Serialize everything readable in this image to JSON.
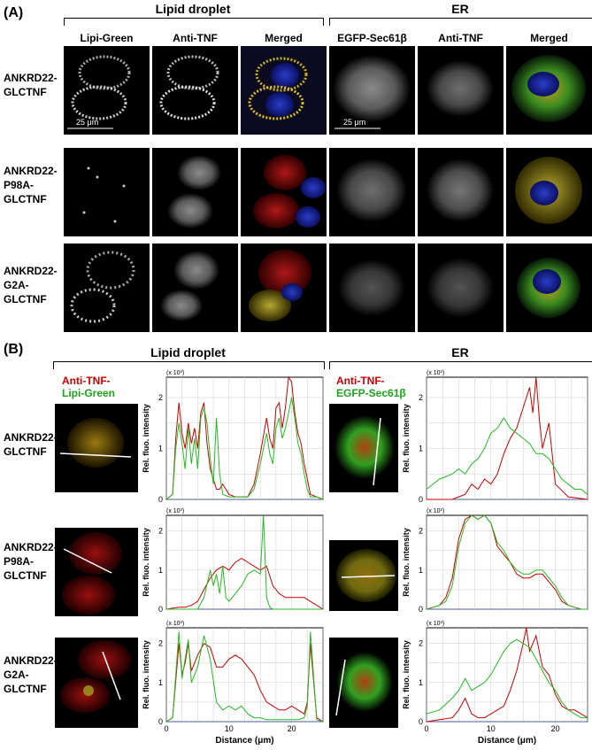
{
  "panelA": {
    "label": "(A)",
    "groups": [
      "Lipid droplet",
      "ER"
    ],
    "columns": [
      "Lipi-Green",
      "Anti-TNF",
      "Merged",
      "EGFP-Sec61β",
      "Anti-TNF",
      "Merged"
    ],
    "rows": [
      [
        "ANKRD22-",
        "GLCTNF"
      ],
      [
        "ANKRD22-",
        "P98A-",
        "GLCTNF"
      ],
      [
        "ANKRD22-",
        "G2A-",
        "GLCTNF"
      ]
    ],
    "scale_bar": "25 μm"
  },
  "panelB": {
    "label": "(B)",
    "groups": [
      "Lipid droplet",
      "ER"
    ],
    "legend_ld": [
      "Anti-TNF-",
      "Lipi-Green"
    ],
    "legend_er": [
      "Anti-TNF-",
      "EGFP-Sec61β"
    ],
    "rows": [
      [
        "ANKRD22-",
        "GLCTNF"
      ],
      [
        "ANKRD22-",
        "P98A-",
        "GLCTNF"
      ],
      [
        "ANKRD22-",
        "G2A-",
        "GLCTNF"
      ]
    ],
    "ylabel": "Rel. fluo. intensity",
    "xlabel": "Distance (μm)",
    "multiplier": "(x 10³)",
    "colors": {
      "red": "#cc0000",
      "green": "#22bb22"
    }
  },
  "chart_data": [
    {
      "type": "line",
      "name": "ld-glctnf",
      "xlabel": "Distance (μm)",
      "ylabel": "Rel. fluo. intensity",
      "ylim": [
        0,
        2.4
      ],
      "xlim": [
        0,
        25
      ],
      "xticks": [
        0,
        10,
        20
      ],
      "yticks": [
        0,
        1,
        2
      ],
      "series": [
        {
          "name": "Anti-TNF",
          "color": "red",
          "x": [
            0,
            1,
            1.5,
            2,
            2.5,
            3,
            3.5,
            4,
            4.5,
            5,
            5.5,
            6,
            6.5,
            7,
            7.5,
            8,
            8.5,
            9,
            10,
            11,
            12,
            13,
            14,
            15,
            16,
            16.5,
            17,
            17.5,
            18,
            18.5,
            19,
            19.5,
            20,
            20.5,
            21,
            21.5,
            22,
            22.5,
            23,
            24,
            25
          ],
          "values": [
            0,
            0.1,
            1.2,
            1.9,
            1.3,
            1.0,
            1.5,
            1.1,
            1.4,
            1.0,
            1.7,
            1.9,
            1.1,
            0.6,
            0.4,
            0.2,
            0.2,
            0.3,
            0.1,
            0.05,
            0.05,
            0.05,
            0.3,
            0.9,
            1.6,
            1.2,
            1.0,
            1.8,
            1.9,
            1.4,
            1.8,
            2.4,
            2.3,
            1.7,
            1.3,
            1.1,
            0.7,
            0.4,
            0.1,
            0.05,
            0
          ]
        },
        {
          "name": "Lipi-Green",
          "color": "green",
          "x": [
            0,
            1,
            1.5,
            2,
            2.5,
            3,
            3.5,
            4,
            4.5,
            5,
            5.5,
            6,
            6.5,
            7,
            7.5,
            8,
            8.5,
            9,
            10,
            11,
            12,
            13,
            14,
            15,
            16,
            16.5,
            17,
            17.5,
            18,
            18.5,
            19,
            19.5,
            20,
            20.5,
            21,
            21.5,
            22,
            22.5,
            23,
            24,
            25
          ],
          "values": [
            0,
            0.1,
            1.0,
            1.5,
            1.1,
            0.6,
            1.4,
            0.7,
            1.2,
            0.6,
            1.6,
            1.8,
            1.5,
            0.8,
            0.3,
            1.6,
            0.5,
            0.1,
            0.05,
            0.05,
            0.05,
            0.05,
            0.2,
            0.7,
            1.3,
            0.9,
            0.7,
            1.4,
            1.6,
            1.2,
            1.4,
            1.7,
            2.0,
            1.6,
            1.1,
            0.9,
            0.5,
            0.2,
            0.05,
            0.05,
            0
          ]
        }
      ]
    },
    {
      "type": "line",
      "name": "er-glctnf",
      "xlabel": "Distance (μm)",
      "ylabel": "Rel. fluo. intensity",
      "ylim": [
        0,
        2.4
      ],
      "xlim": [
        0,
        25
      ],
      "xticks": [
        0,
        10,
        20
      ],
      "yticks": [
        0,
        1,
        2
      ],
      "series": [
        {
          "name": "Anti-TNF",
          "color": "red",
          "x": [
            0,
            2,
            4,
            5,
            6,
            7,
            8,
            9,
            10,
            11,
            12,
            13,
            14,
            15,
            16,
            16.5,
            17,
            17.5,
            18,
            19,
            20,
            22,
            25
          ],
          "values": [
            0,
            0,
            0,
            0.05,
            0.1,
            0.3,
            0.2,
            0.4,
            0.3,
            0.5,
            0.9,
            1.2,
            1.4,
            1.8,
            2.2,
            1.7,
            2.4,
            1.6,
            1.0,
            1.5,
            0.3,
            0.05,
            0
          ]
        },
        {
          "name": "EGFP-Sec61β",
          "color": "green",
          "x": [
            0,
            2,
            4,
            5,
            6,
            7,
            8,
            9,
            10,
            11,
            12,
            13,
            14,
            15,
            16,
            17,
            18,
            19,
            20,
            21,
            22,
            23,
            24,
            25
          ],
          "values": [
            0.2,
            0.4,
            0.5,
            0.6,
            0.5,
            0.7,
            0.8,
            1.0,
            1.3,
            1.4,
            1.6,
            1.4,
            1.3,
            1.2,
            1.1,
            0.9,
            0.9,
            0.8,
            0.6,
            0.4,
            0.3,
            0.2,
            0.2,
            0.1
          ]
        }
      ]
    },
    {
      "type": "line",
      "name": "ld-p98a",
      "xlabel": "Distance (μm)",
      "ylabel": "Rel. fluo. intensity",
      "ylim": [
        0,
        2.4
      ],
      "xlim": [
        0,
        25
      ],
      "xticks": [
        0,
        10,
        20
      ],
      "yticks": [
        0,
        1,
        2
      ],
      "series": [
        {
          "name": "Anti-TNF",
          "color": "red",
          "x": [
            0,
            2,
            3,
            4,
            5,
            6,
            7,
            8,
            9,
            10,
            11,
            12,
            13,
            14,
            15,
            16,
            17,
            18,
            19,
            20,
            21,
            22,
            23,
            24,
            25
          ],
          "values": [
            0,
            0.05,
            0.05,
            0.1,
            0.2,
            0.5,
            0.8,
            1.0,
            1.1,
            1.0,
            1.2,
            1.3,
            1.2,
            1.1,
            1.0,
            1.1,
            0.6,
            0.4,
            0.3,
            0.3,
            0.3,
            0.3,
            0.2,
            0.1,
            0
          ]
        },
        {
          "name": "Lipi-Green",
          "color": "green",
          "x": [
            0,
            2,
            4,
            5,
            6,
            7,
            7.5,
            8,
            8.5,
            9,
            9.5,
            10,
            11,
            12,
            13,
            14,
            15,
            15.5,
            16,
            16.5,
            17,
            18,
            20,
            22,
            25
          ],
          "values": [
            0,
            0,
            0,
            0,
            0.3,
            1.0,
            0.6,
            0.9,
            0.4,
            1.1,
            0.3,
            0.2,
            0.4,
            0.6,
            0.9,
            1.0,
            0.9,
            2.5,
            0.3,
            0.05,
            0,
            0,
            0,
            0,
            0
          ]
        }
      ]
    },
    {
      "type": "line",
      "name": "er-p98a",
      "xlabel": "Distance (μm)",
      "ylabel": "Rel. fluo. intensity",
      "ylim": [
        0,
        2.4
      ],
      "xlim": [
        0,
        25
      ],
      "xticks": [
        0,
        10,
        20
      ],
      "yticks": [
        0,
        1,
        2
      ],
      "series": [
        {
          "name": "Anti-TNF",
          "color": "red",
          "x": [
            0,
            1,
            2,
            3,
            4,
            5,
            6,
            7,
            8,
            9,
            10,
            11,
            12,
            13,
            14,
            15,
            16,
            17,
            18,
            19,
            20,
            21,
            22,
            23,
            24,
            25
          ],
          "values": [
            0,
            0.05,
            0.1,
            0.3,
            0.8,
            1.8,
            2.3,
            2.4,
            2.3,
            2.4,
            2.2,
            1.6,
            1.4,
            1.2,
            0.9,
            0.8,
            0.8,
            0.9,
            0.9,
            0.7,
            0.5,
            0.2,
            0.1,
            0.05,
            0,
            0
          ]
        },
        {
          "name": "EGFP-Sec61β",
          "color": "green",
          "x": [
            0,
            1,
            2,
            3,
            4,
            5,
            6,
            7,
            8,
            9,
            10,
            11,
            12,
            13,
            14,
            15,
            16,
            17,
            18,
            19,
            20,
            21,
            22,
            23,
            24,
            25
          ],
          "values": [
            0,
            0.05,
            0.1,
            0.2,
            0.6,
            1.6,
            2.2,
            2.4,
            2.3,
            2.4,
            2.2,
            1.7,
            1.5,
            1.2,
            1.0,
            0.9,
            0.9,
            1.0,
            1.0,
            0.8,
            0.6,
            0.3,
            0.1,
            0.05,
            0,
            0
          ]
        }
      ]
    },
    {
      "type": "line",
      "name": "ld-g2a",
      "xlabel": "Distance (μm)",
      "ylabel": "Rel. fluo. intensity",
      "ylim": [
        0,
        2.4
      ],
      "xlim": [
        0,
        25
      ],
      "xticks": [
        0,
        10,
        20
      ],
      "yticks": [
        0,
        1,
        2
      ],
      "series": [
        {
          "name": "Anti-TNF",
          "color": "red",
          "x": [
            0,
            1,
            2,
            2.5,
            3,
            3.5,
            4,
            5,
            6,
            7,
            8,
            9,
            10,
            11,
            12,
            13,
            14,
            15,
            16,
            17,
            18,
            19,
            20,
            21,
            22,
            22.5,
            23,
            24,
            25
          ],
          "values": [
            0,
            0.1,
            2.0,
            1.2,
            1.5,
            2.0,
            1.3,
            1.7,
            2.0,
            1.9,
            1.4,
            1.4,
            1.6,
            1.7,
            1.6,
            1.4,
            1.2,
            0.8,
            0.5,
            0.4,
            0.3,
            0.3,
            0.4,
            0.3,
            0.2,
            0.5,
            2.0,
            0.1,
            0
          ]
        },
        {
          "name": "Lipi-Green",
          "color": "green",
          "x": [
            0,
            1,
            2,
            2.5,
            3,
            3.5,
            4,
            5,
            6,
            7,
            8,
            9,
            10,
            11,
            12,
            13,
            14,
            15,
            16,
            17,
            18,
            19,
            20,
            21,
            22,
            22.5,
            23,
            24,
            25
          ],
          "values": [
            0,
            0.1,
            2.3,
            1.1,
            1.6,
            2.1,
            1.0,
            1.4,
            2.2,
            1.6,
            0.5,
            0.3,
            0.4,
            0.3,
            0.4,
            0.2,
            0.1,
            0.1,
            0.05,
            0.05,
            0.05,
            0.05,
            0.05,
            0.05,
            0.1,
            0.4,
            2.3,
            0.05,
            0
          ]
        }
      ]
    },
    {
      "type": "line",
      "name": "er-g2a",
      "xlabel": "Distance (μm)",
      "ylabel": "Rel. fluo. intensity",
      "ylim": [
        0,
        2.4
      ],
      "xlim": [
        0,
        25
      ],
      "xticks": [
        0,
        10,
        20
      ],
      "yticks": [
        0,
        1,
        2
      ],
      "series": [
        {
          "name": "Anti-TNF",
          "color": "red",
          "x": [
            0,
            2,
            4,
            5,
            6,
            7,
            8,
            9,
            10,
            11,
            12,
            13,
            14,
            15,
            15.5,
            16,
            17,
            18,
            19,
            20,
            21,
            22,
            23,
            24,
            25
          ],
          "values": [
            0,
            0.05,
            0.1,
            0.3,
            0.6,
            0.2,
            0.1,
            0.1,
            0.2,
            0.3,
            0.4,
            0.8,
            1.3,
            2.0,
            2.4,
            1.8,
            2.2,
            1.4,
            1.2,
            0.7,
            0.4,
            0.3,
            0.3,
            0.2,
            0.1
          ]
        },
        {
          "name": "EGFP-Sec61β",
          "color": "green",
          "x": [
            0,
            2,
            4,
            5,
            6,
            7,
            8,
            9,
            10,
            11,
            12,
            13,
            14,
            15,
            16,
            17,
            18,
            19,
            20,
            21,
            22,
            23,
            24,
            25
          ],
          "values": [
            0.2,
            0.3,
            0.6,
            0.8,
            1.1,
            0.8,
            0.9,
            1.0,
            1.2,
            1.5,
            1.8,
            2.0,
            2.1,
            2.0,
            1.9,
            1.6,
            1.3,
            1.0,
            0.8,
            0.5,
            0.3,
            0.2,
            0.1,
            0.1
          ]
        }
      ]
    }
  ]
}
